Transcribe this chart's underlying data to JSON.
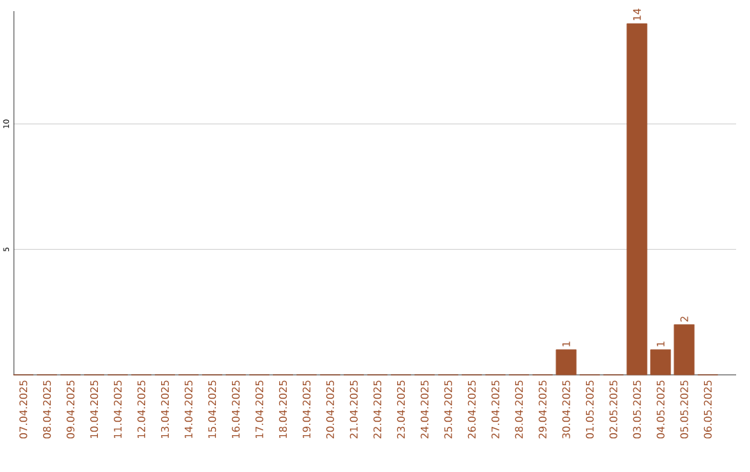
{
  "chart_data": {
    "type": "bar",
    "categories": [
      "07.04.2025",
      "08.04.2025",
      "09.04.2025",
      "10.04.2025",
      "11.04.2025",
      "12.04.2025",
      "13.04.2025",
      "14.04.2025",
      "15.04.2025",
      "16.04.2025",
      "17.04.2025",
      "18.04.2025",
      "19.04.2025",
      "20.04.2025",
      "21.04.2025",
      "22.04.2025",
      "23.04.2025",
      "24.04.2025",
      "25.04.2025",
      "26.04.2025",
      "27.04.2025",
      "28.04.2025",
      "29.04.2025",
      "30.04.2025",
      "01.05.2025",
      "02.05.2025",
      "03.05.2025",
      "04.05.2025",
      "05.05.2025",
      "06.05.2025"
    ],
    "values": [
      0,
      0,
      0,
      0,
      0,
      0,
      0,
      0,
      0,
      0,
      0,
      0,
      0,
      0,
      0,
      0,
      0,
      0,
      0,
      0,
      0,
      0,
      0,
      1,
      0,
      0,
      14,
      1,
      2,
      0
    ],
    "value_labels": [
      null,
      null,
      null,
      null,
      null,
      null,
      null,
      null,
      null,
      null,
      null,
      null,
      null,
      null,
      null,
      null,
      null,
      null,
      null,
      null,
      null,
      null,
      null,
      "1",
      null,
      null,
      "14",
      "1",
      "2",
      null
    ],
    "color": "#a0522d",
    "ylim": [
      0,
      14.5
    ],
    "yticks": [
      5,
      10
    ],
    "grid": "y"
  }
}
